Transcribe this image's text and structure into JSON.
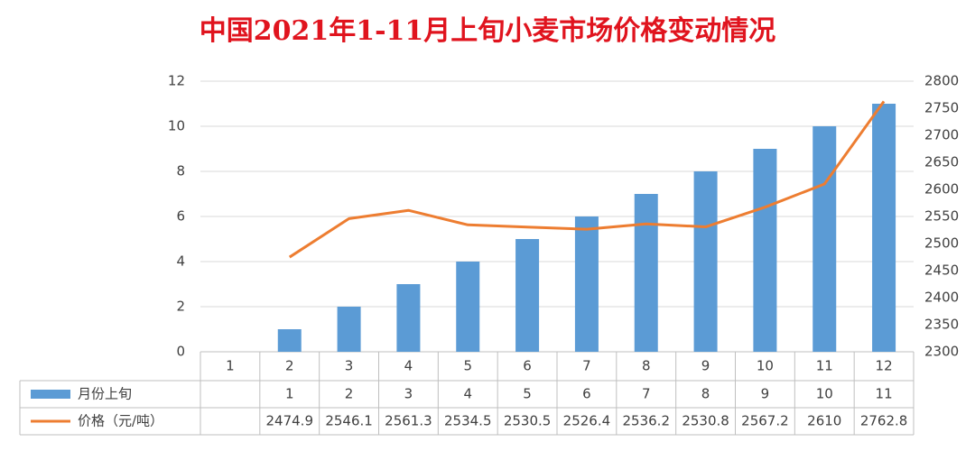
{
  "chart_data": {
    "type": "bar-line",
    "title": "中国2021年1-11月上旬小麦市场价格变动情况",
    "categories": [
      "1",
      "2",
      "3",
      "4",
      "5",
      "6",
      "7",
      "8",
      "9",
      "10",
      "11",
      "12"
    ],
    "series": [
      {
        "name": "月份上旬",
        "type": "bar",
        "color": "#5b9bd5",
        "values": [
          null,
          1,
          2,
          3,
          4,
          5,
          6,
          7,
          8,
          9,
          10,
          11
        ]
      },
      {
        "name": "价格（元/吨）",
        "type": "line",
        "axis": "y2",
        "color": "#ed7d31",
        "values": [
          null,
          2474.9,
          2546.1,
          2561.3,
          2534.5,
          2530.5,
          2526.4,
          2536.2,
          2530.8,
          2567.2,
          2610,
          2762.8
        ]
      }
    ],
    "ylim": [
      0,
      12
    ],
    "yticks": [
      0,
      2,
      4,
      6,
      8,
      10,
      12
    ],
    "y2lim": [
      2300,
      2800
    ],
    "y2ticks": [
      2300,
      2350,
      2400,
      2450,
      2500,
      2550,
      2600,
      2650,
      2700,
      2750,
      2800
    ],
    "grid": true
  }
}
